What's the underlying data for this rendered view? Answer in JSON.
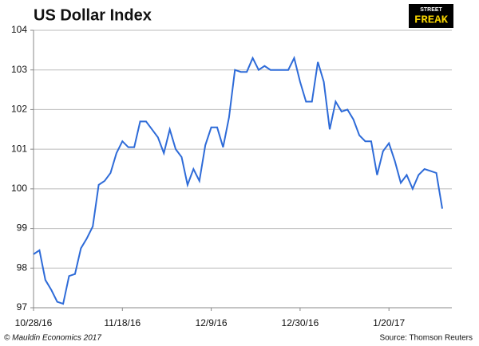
{
  "chart_data": {
    "type": "line",
    "title": "US Dollar Index",
    "logo": {
      "top": "STREET",
      "main": "FREAK"
    },
    "credit": "© Mauldin Economics 2017",
    "source": "Source: Thomson Reuters",
    "categories": [
      "10/28/16",
      null,
      null,
      null,
      null,
      null,
      null,
      null,
      null,
      null,
      null,
      null,
      null,
      null,
      null,
      "11/18/16",
      null,
      null,
      null,
      null,
      null,
      null,
      null,
      null,
      null,
      null,
      null,
      null,
      null,
      null,
      "12/9/16",
      null,
      null,
      null,
      null,
      null,
      null,
      null,
      null,
      null,
      null,
      null,
      null,
      null,
      null,
      "12/30/16",
      null,
      null,
      null,
      null,
      null,
      null,
      null,
      null,
      null,
      null,
      null,
      null,
      null,
      null,
      "1/20/17",
      null,
      null,
      null,
      null,
      null,
      null,
      null,
      null,
      null
    ],
    "series": [
      {
        "name": "US Dollar Index",
        "color": "#2e6bd8",
        "values": [
          98.35,
          98.45,
          97.7,
          97.45,
          97.15,
          97.1,
          97.8,
          97.85,
          98.5,
          98.75,
          99.05,
          100.1,
          100.2,
          100.4,
          100.9,
          101.2,
          101.05,
          101.05,
          101.7,
          101.7,
          101.5,
          101.3,
          100.9,
          101.5,
          101.0,
          100.8,
          100.1,
          100.5,
          100.2,
          101.1,
          101.55,
          101.55,
          101.05,
          101.8,
          103.0,
          102.95,
          102.95,
          103.3,
          103.0,
          103.1,
          103.0,
          103.0,
          103.0,
          103.0,
          103.3,
          102.7,
          102.2,
          102.2,
          103.2,
          102.7,
          101.5,
          102.2,
          101.95,
          102.0,
          101.75,
          101.35,
          101.2,
          101.2,
          100.35,
          100.95,
          101.15,
          100.7,
          100.15,
          100.35,
          100.0,
          100.35,
          100.5,
          100.45,
          100.4,
          99.5
        ]
      }
    ],
    "ylim": [
      97,
      104
    ],
    "yticks": [
      97,
      98,
      99,
      100,
      101,
      102,
      103,
      104
    ],
    "grid": true
  }
}
